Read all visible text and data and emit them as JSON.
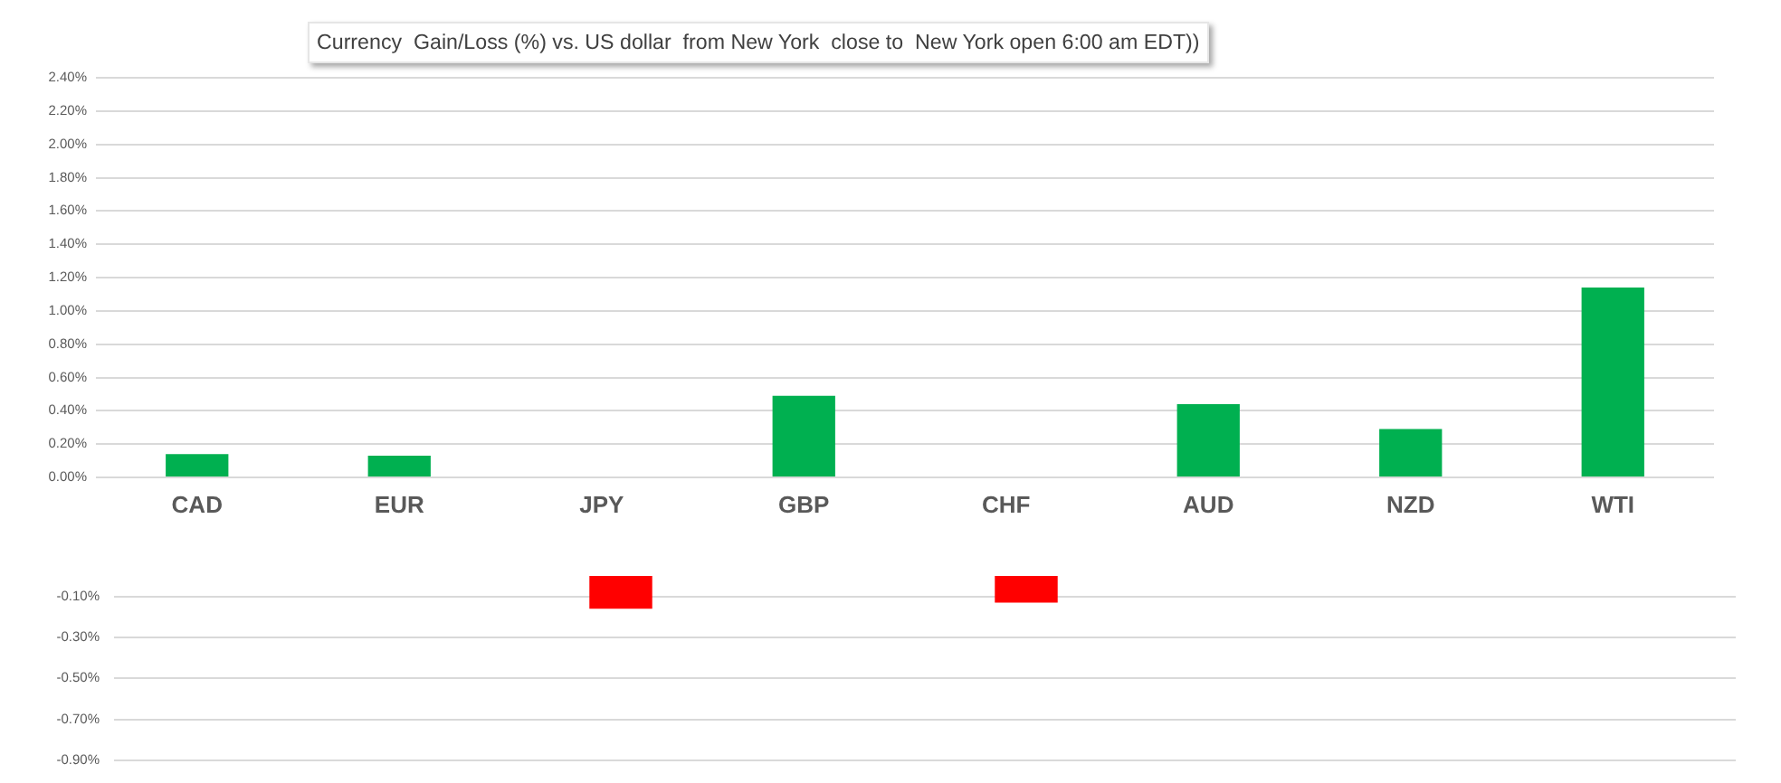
{
  "chart_data": [
    {
      "type": "bar",
      "title": "Currency  Gain/Loss (%) vs. US dollar  from New York  close to  New York open 6:00 am EDT))",
      "categories": [
        "CAD",
        "EUR",
        "JPY",
        "GBP",
        "CHF",
        "AUD",
        "NZD",
        "WTI"
      ],
      "values": [
        0.14,
        0.13,
        null,
        0.49,
        null,
        0.44,
        0.29,
        1.14
      ],
      "color": "#00b050",
      "ylim": [
        0,
        2.4
      ],
      "yticks": [
        {
          "value": 0,
          "label": "0.00%"
        },
        {
          "value": 0.2,
          "label": "0.20%"
        },
        {
          "value": 0.4,
          "label": "0.40%"
        },
        {
          "value": 0.6,
          "label": "0.60%"
        },
        {
          "value": 0.8,
          "label": "0.80%"
        },
        {
          "value": 1.0,
          "label": "1.00%"
        },
        {
          "value": 1.2,
          "label": "1.20%"
        },
        {
          "value": 1.4,
          "label": "1.40%"
        },
        {
          "value": 1.6,
          "label": "1.60%"
        },
        {
          "value": 1.8,
          "label": "1.80%"
        },
        {
          "value": 2.0,
          "label": "2.00%"
        },
        {
          "value": 2.2,
          "label": "2.20%"
        },
        {
          "value": 2.4,
          "label": "2.40%"
        }
      ],
      "grid": "y"
    },
    {
      "type": "bar",
      "categories": [
        null,
        null,
        null,
        null,
        null,
        null,
        null,
        null
      ],
      "values": [
        null,
        null,
        -0.16,
        null,
        -0.13,
        null,
        null,
        null
      ],
      "color": "#ff0000",
      "ylim": [
        -0.9,
        0
      ],
      "yticks": [
        {
          "value": -0.1,
          "label": "-0.10%"
        },
        {
          "value": -0.3,
          "label": "-0.30%"
        },
        {
          "value": -0.5,
          "label": "-0.50%"
        },
        {
          "value": -0.7,
          "label": "-0.70%"
        },
        {
          "value": -0.9,
          "label": "-0.90%"
        }
      ],
      "grid": "y"
    }
  ]
}
